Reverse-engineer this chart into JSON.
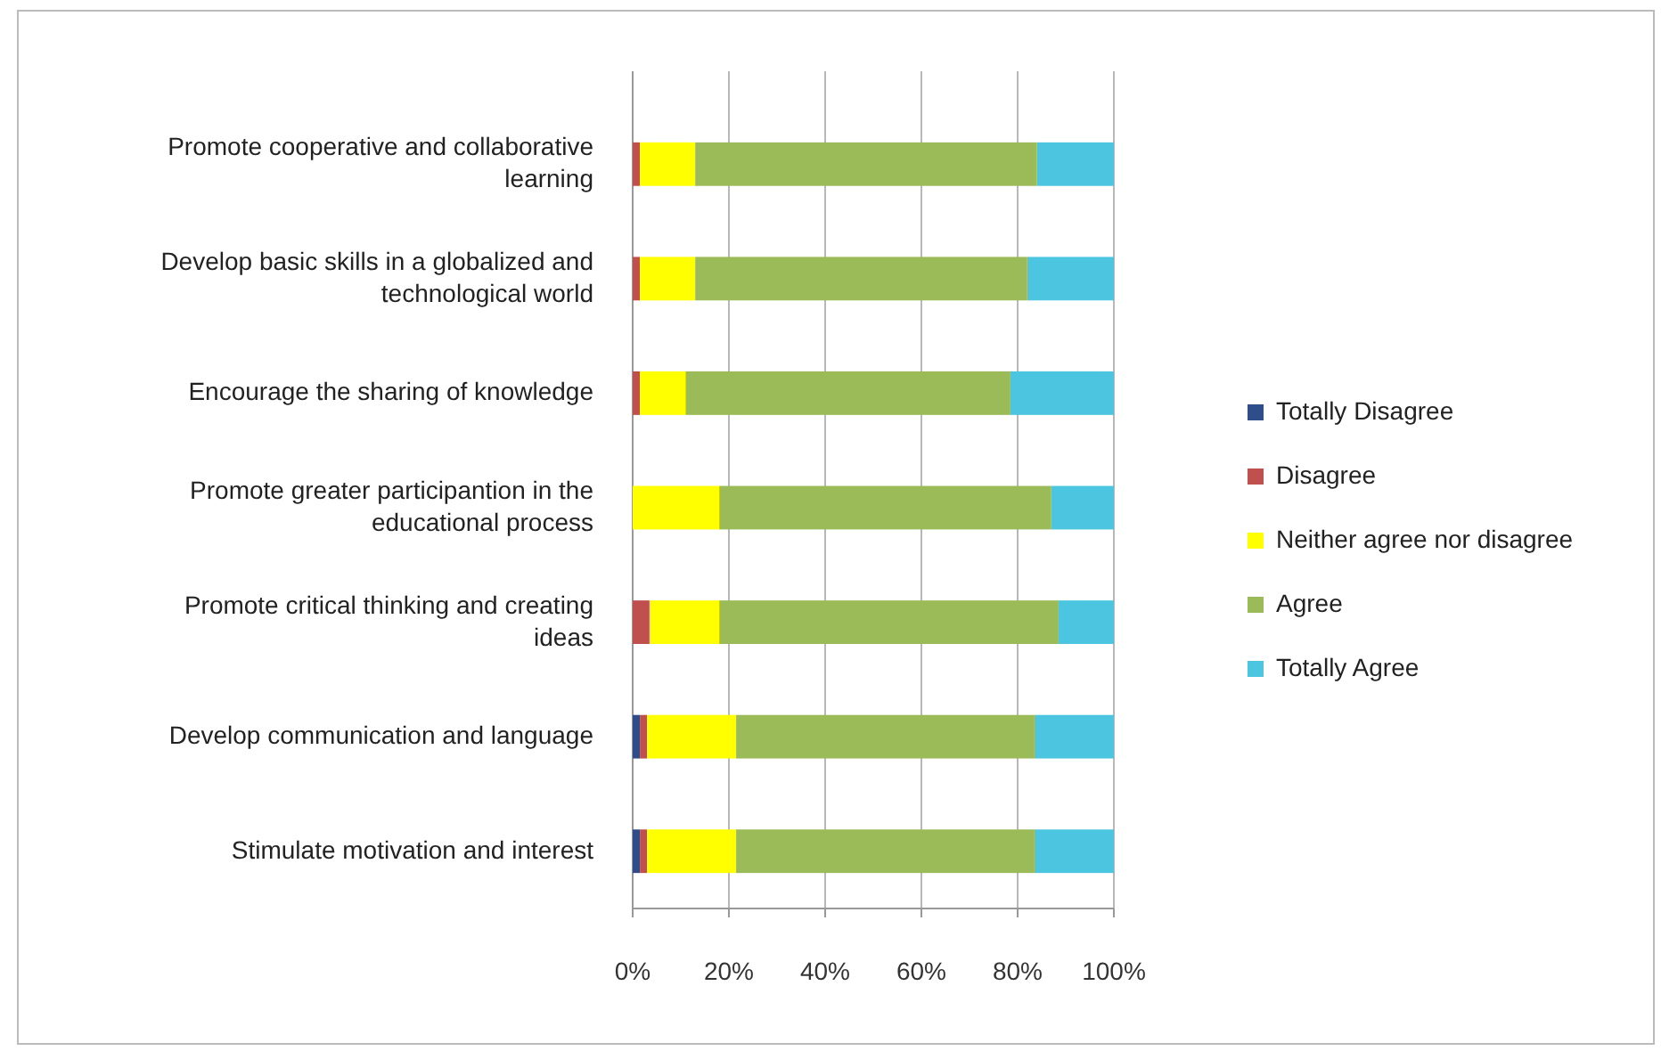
{
  "chart_data": {
    "type": "bar",
    "orientation": "horizontal",
    "stacked": true,
    "categories": [
      "Promote cooperative and collaborative learning",
      "Develop basic skills in a globalized and technological world",
      "Encourage the sharing of knowledge",
      "Promote greater participantion in the educational process",
      "Promote critical thinking and creating ideas",
      "Develop communication and language",
      "Stimulate motivation and interest"
    ],
    "series": [
      {
        "name": "Totally Disagree",
        "color": "#2e4d8a",
        "values": [
          0,
          0,
          0,
          0,
          0,
          1.5,
          1.5
        ]
      },
      {
        "name": "Disagree",
        "color": "#c0504d",
        "values": [
          1.5,
          1.5,
          1.5,
          0,
          3.5,
          1.5,
          1.5
        ]
      },
      {
        "name": "Neither agree nor disagree",
        "color": "#ffff00",
        "values": [
          11.5,
          11.5,
          9.5,
          18,
          14.5,
          18.5,
          18.5
        ]
      },
      {
        "name": "Agree",
        "color": "#9bbb59",
        "values": [
          71,
          69,
          67.5,
          69,
          70.5,
          62,
          62
        ]
      },
      {
        "name": "Totally Agree",
        "color": "#4bc5e0",
        "values": [
          16,
          18,
          21.5,
          13,
          11.5,
          16.5,
          16.5
        ]
      }
    ],
    "xlim": [
      0,
      100
    ],
    "xticks": [
      {
        "value": 0,
        "label": "0%"
      },
      {
        "value": 20,
        "label": "20%"
      },
      {
        "value": 40,
        "label": "40%"
      },
      {
        "value": 60,
        "label": "60%"
      },
      {
        "value": 80,
        "label": "80%"
      },
      {
        "value": 100,
        "label": "100%"
      }
    ],
    "grid": "x",
    "legend": "right"
  }
}
